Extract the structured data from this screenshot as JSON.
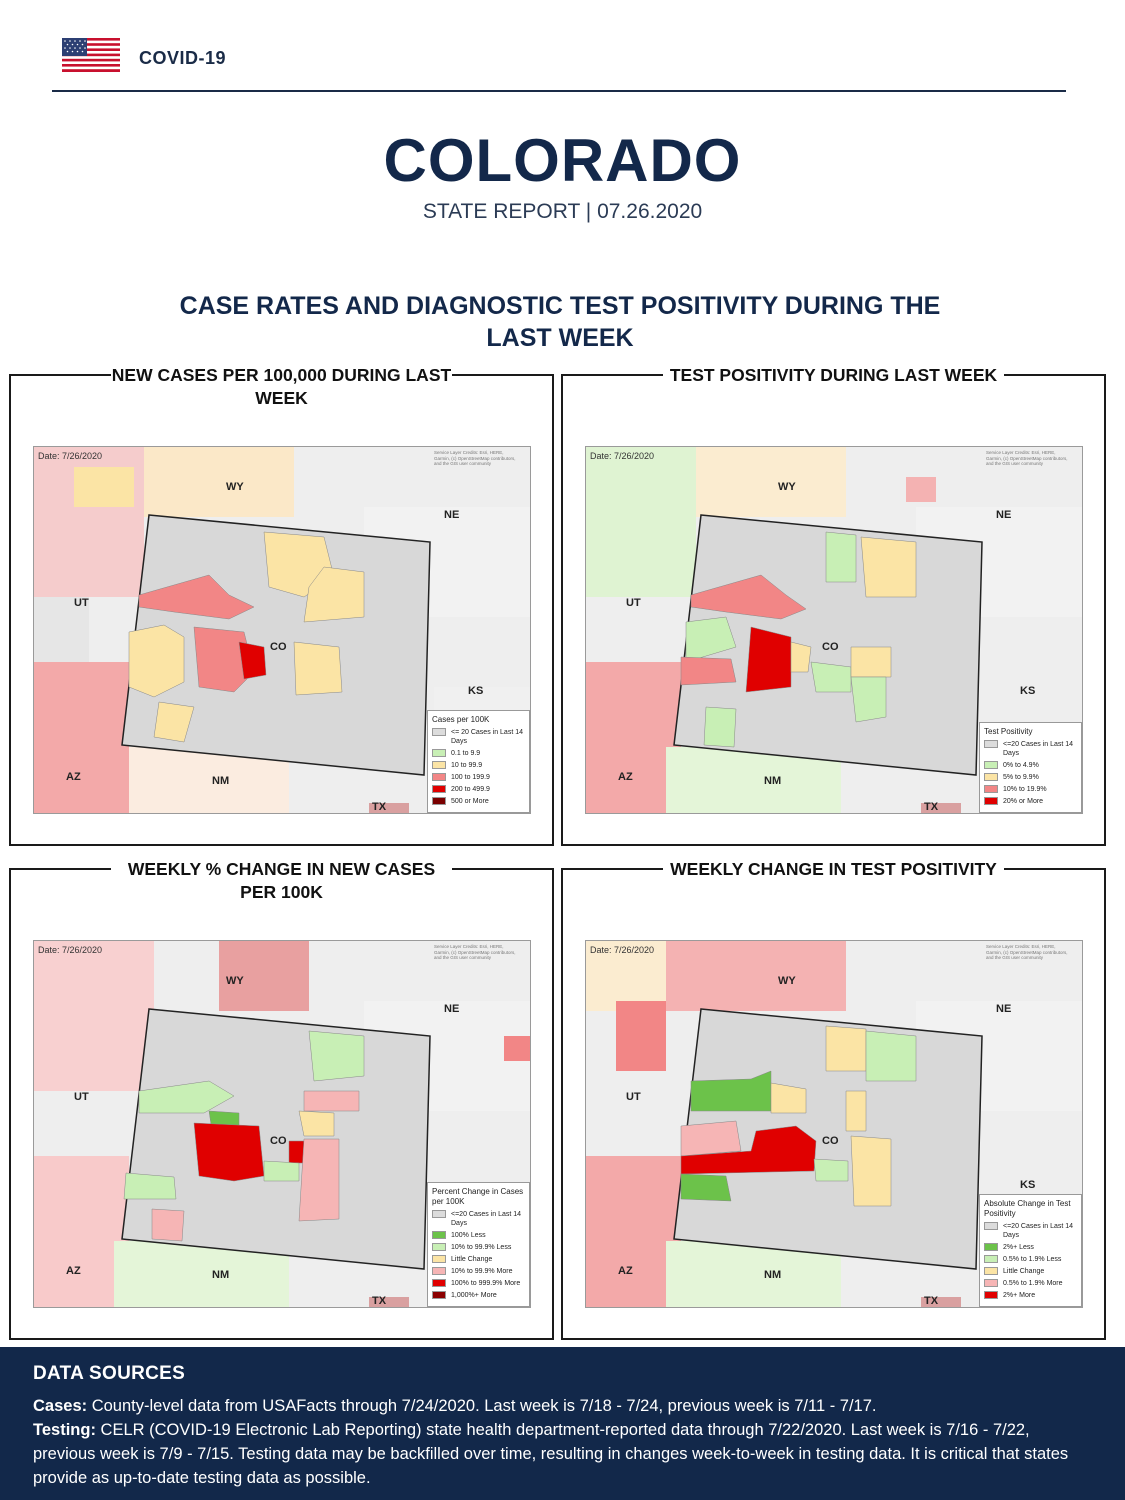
{
  "header": {
    "brand": "COVID-19",
    "flag_icon": "us-flag-icon"
  },
  "title": "COLORADO",
  "report_line": "STATE REPORT | 07.26.2020",
  "section_title": "CASE RATES AND DIAGNOSTIC TEST POSITIVITY DURING THE LAST WEEK",
  "maps_common": {
    "date": "Date: 7/26/2020",
    "credit": [
      "Service Layer Credits: Esri, HERE,",
      "Garmin, (c) OpenStreetMap contributors,",
      "and the GIS user community"
    ],
    "states": {
      "wy": "WY",
      "ne": "NE",
      "ut": "UT",
      "co": "CO",
      "ks": "KS",
      "az": "AZ",
      "nm": "NM",
      "tx": "TX"
    }
  },
  "panels": [
    {
      "title": "NEW CASES PER 100,000 DURING LAST WEEK",
      "legend": {
        "title": "Cases per 100K",
        "items": [
          {
            "label": "<= 20 Cases in Last 14 Days",
            "color": "#dcdcdc"
          },
          {
            "label": "0.1 to 9.9",
            "color": "#c8efb5"
          },
          {
            "label": "10 to 99.9",
            "color": "#fbe4a5"
          },
          {
            "label": "100 to 199.9",
            "color": "#f28686"
          },
          {
            "label": "200 to 499.9",
            "color": "#e00000"
          },
          {
            "label": "500 or More",
            "color": "#7a0000"
          }
        ]
      }
    },
    {
      "title": "TEST POSITIVITY DURING LAST WEEK",
      "legend": {
        "title": "Test Positivity",
        "items": [
          {
            "label": "<=20 Cases in Last 14 Days",
            "color": "#dcdcdc"
          },
          {
            "label": "0% to 4.9%",
            "color": "#c8efb5"
          },
          {
            "label": "5% to 9.9%",
            "color": "#fbe4a5"
          },
          {
            "label": "10% to 19.9%",
            "color": "#f28686"
          },
          {
            "label": "20% or More",
            "color": "#e00000"
          }
        ]
      }
    },
    {
      "title": "WEEKLY % CHANGE IN NEW CASES PER 100K",
      "legend": {
        "title": "Percent Change in Cases per 100K",
        "items": [
          {
            "label": "<=20 Cases in Last 14 Days",
            "color": "#dcdcdc"
          },
          {
            "label": "100% Less",
            "color": "#6cc24a"
          },
          {
            "label": "10% to 99.9% Less",
            "color": "#c8efb5"
          },
          {
            "label": "Little Change",
            "color": "#fbe4a5"
          },
          {
            "label": "10% to 99.9% More",
            "color": "#f6b5b5"
          },
          {
            "label": "100% to 999.9% More",
            "color": "#e00000"
          },
          {
            "label": "1,000%+ More",
            "color": "#8b0000"
          }
        ]
      }
    },
    {
      "title": "WEEKLY CHANGE IN TEST POSITIVITY",
      "legend": {
        "title": "Absolute Change in Test Positivity",
        "items": [
          {
            "label": "<=20 Cases in Last 14 Days",
            "color": "#dcdcdc"
          },
          {
            "label": "2%+ Less",
            "color": "#6cc24a"
          },
          {
            "label": "0.5% to 1.9% Less",
            "color": "#c8efb5"
          },
          {
            "label": "Little Change",
            "color": "#fbe4a5"
          },
          {
            "label": "0.5% to 1.9% More",
            "color": "#f6b5b5"
          },
          {
            "label": "2%+ More",
            "color": "#e00000"
          }
        ]
      }
    }
  ],
  "footer": {
    "heading": "DATA SOURCES",
    "cases_label": "Cases:",
    "cases_text": " County-level data from USAFacts through 7/24/2020. Last week is 7/18 - 7/24, previous week is 7/11 - 7/17.",
    "testing_label": "Testing:",
    "testing_text": " CELR (COVID-19 Electronic Lab Reporting) state health department-reported data through 7/22/2020. Last week is 7/16 - 7/22, previous week is 7/9 - 7/15. Testing data may be backfilled over time, resulting in changes week-to-week in testing data. It is critical that states provide as up-to-date testing data as possible."
  }
}
